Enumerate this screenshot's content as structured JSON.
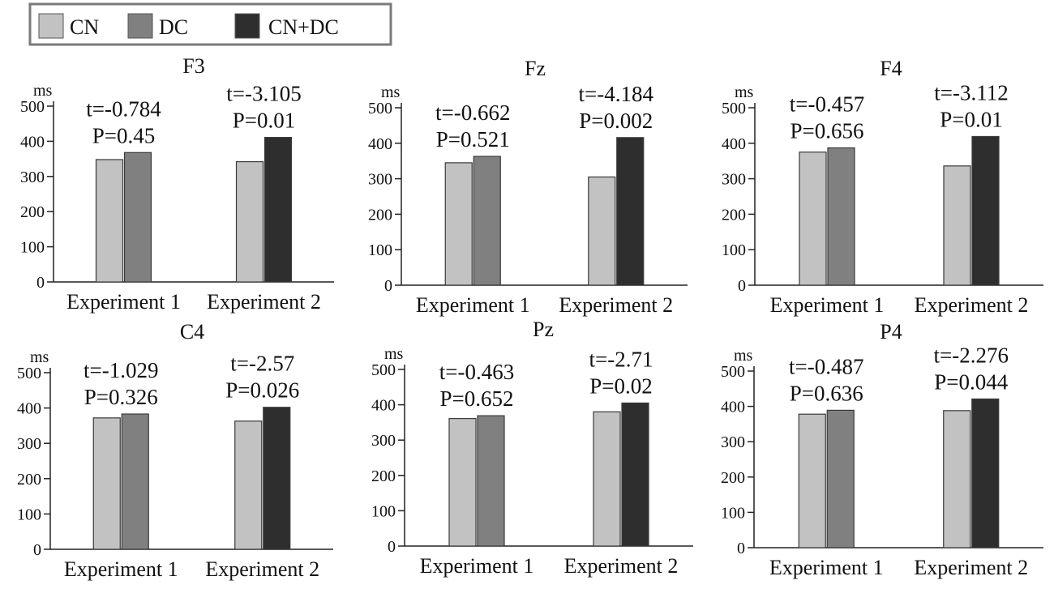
{
  "legend": {
    "entries": [
      {
        "name": "CN",
        "color": "#c2c2c2"
      },
      {
        "name": "DC",
        "color": "#808080"
      },
      {
        "name": "CN+DC",
        "color": "#2e2e2e"
      }
    ]
  },
  "chart_data": [
    {
      "type": "bar",
      "title": "F3",
      "ylabel": "ms",
      "ylim": [
        0,
        500
      ],
      "yticks": [
        0,
        100,
        200,
        300,
        400,
        500
      ],
      "categories": [
        "Experiment 1",
        "Experiment 2"
      ],
      "series": [
        {
          "name": "CN",
          "values": [
            348,
            342
          ]
        },
        {
          "name": "DC",
          "values": [
            368,
            null
          ]
        },
        {
          "name": "CN+DC",
          "values": [
            null,
            411
          ]
        }
      ],
      "annotations": [
        {
          "t": "t=-0.784",
          "p": "P=0.45"
        },
        {
          "t": "t=-3.105",
          "p": "P=0.01"
        }
      ]
    },
    {
      "type": "bar",
      "title": "Fz",
      "ylabel": "ms",
      "ylim": [
        0,
        500
      ],
      "yticks": [
        0,
        100,
        200,
        300,
        400,
        500
      ],
      "categories": [
        "Experiment 1",
        "Experiment 2"
      ],
      "series": [
        {
          "name": "CN",
          "values": [
            345,
            305
          ]
        },
        {
          "name": "DC",
          "values": [
            363,
            null
          ]
        },
        {
          "name": "CN+DC",
          "values": [
            null,
            416
          ]
        }
      ],
      "annotations": [
        {
          "t": "t=-0.662",
          "p": "P=0.521"
        },
        {
          "t": "t=-4.184",
          "p": "P=0.002"
        }
      ]
    },
    {
      "type": "bar",
      "title": "F4",
      "ylabel": "ms",
      "ylim": [
        0,
        500
      ],
      "yticks": [
        0,
        100,
        200,
        300,
        400,
        500
      ],
      "categories": [
        "Experiment 1",
        "Experiment 2"
      ],
      "series": [
        {
          "name": "CN",
          "values": [
            375,
            336
          ]
        },
        {
          "name": "DC",
          "values": [
            387,
            null
          ]
        },
        {
          "name": "CN+DC",
          "values": [
            null,
            419
          ]
        }
      ],
      "annotations": [
        {
          "t": "t=-0.457",
          "p": "P=0.656"
        },
        {
          "t": "t=-3.112",
          "p": "P=0.01"
        }
      ]
    },
    {
      "type": "bar",
      "title": "C4",
      "ylabel": "ms",
      "ylim": [
        0,
        500
      ],
      "yticks": [
        0,
        100,
        200,
        300,
        400,
        500
      ],
      "categories": [
        "Experiment 1",
        "Experiment 2"
      ],
      "series": [
        {
          "name": "CN",
          "values": [
            372,
            363
          ]
        },
        {
          "name": "DC",
          "values": [
            383,
            null
          ]
        },
        {
          "name": "CN+DC",
          "values": [
            null,
            402
          ]
        }
      ],
      "annotations": [
        {
          "t": "t=-1.029",
          "p": "P=0.326"
        },
        {
          "t": "t=-2.57",
          "p": "P=0.026"
        }
      ]
    },
    {
      "type": "bar",
      "title": "Pz",
      "ylabel": "ms",
      "ylim": [
        0,
        500
      ],
      "yticks": [
        0,
        100,
        200,
        300,
        400,
        500
      ],
      "categories": [
        "Experiment 1",
        "Experiment 2"
      ],
      "series": [
        {
          "name": "CN",
          "values": [
            361,
            380
          ]
        },
        {
          "name": "DC",
          "values": [
            369,
            null
          ]
        },
        {
          "name": "CN+DC",
          "values": [
            null,
            405
          ]
        }
      ],
      "annotations": [
        {
          "t": "t=-0.463",
          "p": "P=0.652"
        },
        {
          "t": "t=-2.71",
          "p": "P=0.02"
        }
      ]
    },
    {
      "type": "bar",
      "title": "P4",
      "ylabel": "ms",
      "ylim": [
        0,
        500
      ],
      "yticks": [
        0,
        100,
        200,
        300,
        400,
        500
      ],
      "categories": [
        "Experiment 1",
        "Experiment 2"
      ],
      "series": [
        {
          "name": "CN",
          "values": [
            378,
            388
          ]
        },
        {
          "name": "DC",
          "values": [
            389,
            null
          ]
        },
        {
          "name": "CN+DC",
          "values": [
            null,
            421
          ]
        }
      ],
      "annotations": [
        {
          "t": "t=-0.487",
          "p": "P=0.636"
        },
        {
          "t": "t=-2.276",
          "p": "P=0.044"
        }
      ]
    }
  ]
}
